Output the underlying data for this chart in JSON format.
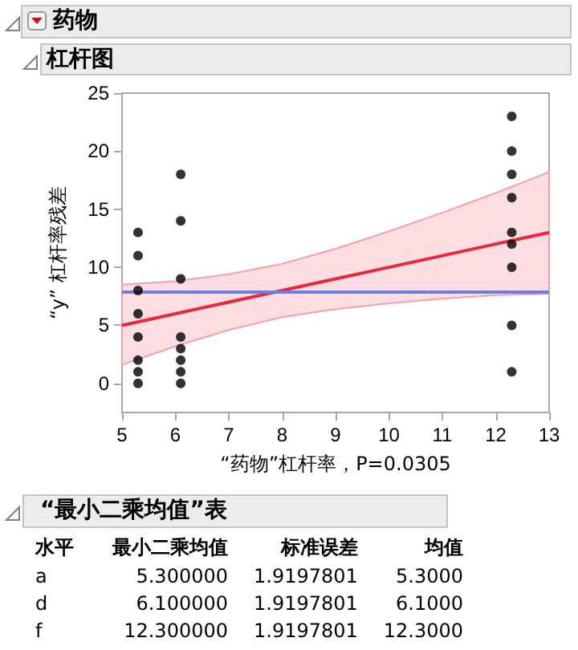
{
  "chart_data": [
    {
      "type": "scatter",
      "title": "药物",
      "subtitle": "杠杆图",
      "xlabel": "“药物”杠杆率，P=0.0305",
      "ylabel": "“y” 杠杆率残差",
      "xlim": [
        5,
        13
      ],
      "xticks": [
        5,
        6,
        7,
        8,
        9,
        10,
        11,
        12,
        13
      ],
      "ylim": [
        -2.5,
        25
      ],
      "yticks": [
        0,
        5,
        10,
        15,
        20,
        25
      ],
      "grid": false,
      "marker": "circle",
      "series": [
        {
          "color": "#000000",
          "x": [
            5.3,
            5.3,
            5.3,
            5.3,
            5.3,
            5.3,
            5.3,
            5.3,
            6.1,
            6.1,
            6.1,
            6.1,
            6.1,
            6.1,
            6.1,
            6.1,
            12.3,
            12.3,
            12.3,
            12.3,
            12.3,
            12.3,
            12.3,
            12.3,
            12.3
          ],
          "values": [
            0,
            1,
            2,
            4,
            6,
            8,
            11,
            13,
            0,
            1,
            2,
            3,
            4,
            9,
            14,
            18,
            1,
            5,
            10,
            12,
            13,
            16,
            18,
            20,
            23
          ]
        },
        {
          "type": "line",
          "color": "#e8283c",
          "marker": "none",
          "x": [
            5,
            6,
            7,
            8,
            9,
            10,
            11,
            12,
            13
          ],
          "values": [
            5,
            6,
            7,
            8,
            9,
            10,
            11,
            12,
            13
          ],
          "lower": [
            1.6,
            3.2,
            4.6,
            5.7,
            6.4,
            6.9,
            7.3,
            7.6,
            7.7
          ],
          "upper": [
            8.5,
            8.8,
            9.4,
            10.3,
            11.6,
            13.1,
            14.7,
            16.4,
            18.2
          ]
        }
      ],
      "ref_lines": [
        {
          "axis": "y",
          "value": 7.85,
          "color": "#6b7de0"
        }
      ]
    },
    {
      "type": "other",
      "title": "“最小二乘均值”表",
      "annotations": [
        "水平",
        "最小二乘均值",
        "标准误差",
        "均值",
        "a",
        "5.300000",
        "1.9197801",
        "5.3000",
        "d",
        "6.100000",
        "1.9197801",
        "6.1000",
        "f",
        "12.300000",
        "1.9197801",
        "12.3000"
      ]
    }
  ]
}
